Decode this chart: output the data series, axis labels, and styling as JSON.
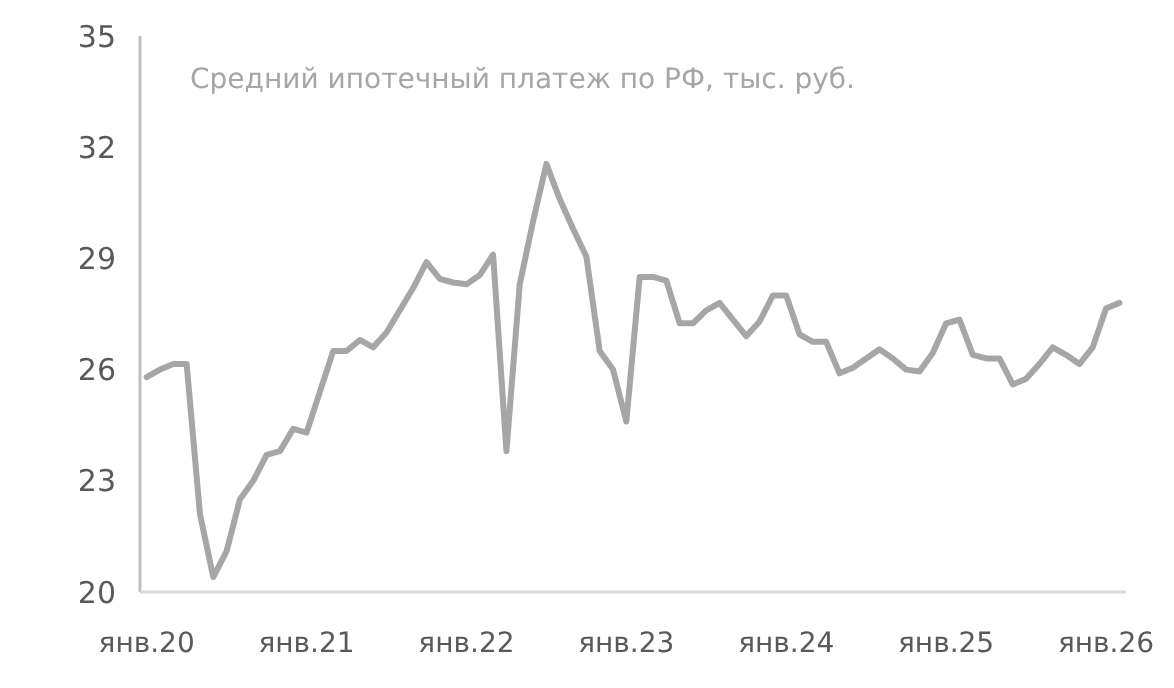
{
  "chart_data": {
    "type": "line",
    "title": "Средний ипотечный платеж по РФ, тыс. руб.",
    "categories": [
      "янв.20",
      null,
      null,
      null,
      null,
      null,
      null,
      null,
      null,
      null,
      null,
      null,
      "янв.21",
      null,
      null,
      null,
      null,
      null,
      null,
      null,
      null,
      null,
      null,
      null,
      "янв.22",
      null,
      null,
      null,
      null,
      null,
      null,
      null,
      null,
      null,
      null,
      null,
      "янв.23",
      null,
      null,
      null,
      null,
      null,
      null,
      null,
      null,
      null,
      null,
      null,
      "янв.24",
      null,
      null,
      null,
      null,
      null,
      null,
      null,
      null,
      null,
      null,
      null,
      "янв.25",
      null,
      null,
      null,
      null,
      null,
      null,
      null,
      null,
      null,
      null,
      null,
      "янв.26",
      null
    ],
    "series": [
      {
        "color": "#a6a6a6",
        "values": [
          25.8,
          26.0,
          26.15,
          26.15,
          22.1,
          20.4,
          21.1,
          22.5,
          23.0,
          23.7,
          23.8,
          24.4,
          24.3,
          25.4,
          26.5,
          26.5,
          26.8,
          26.6,
          27.0,
          27.6,
          28.2,
          28.9,
          28.45,
          28.35,
          28.3,
          28.55,
          29.1,
          23.8,
          28.3,
          30.0,
          31.55,
          30.6,
          29.8,
          29.05,
          26.5,
          26.0,
          24.6,
          28.5,
          28.5,
          28.4,
          27.25,
          27.25,
          27.6,
          27.8,
          27.35,
          26.9,
          27.3,
          28.0,
          28.0,
          26.95,
          26.75,
          26.75,
          25.9,
          26.05,
          26.3,
          26.55,
          26.3,
          26.0,
          25.95,
          26.45,
          27.25,
          27.35,
          26.4,
          26.3,
          26.3,
          25.6,
          25.75,
          26.15,
          26.6,
          26.4,
          26.15,
          26.6,
          27.65,
          27.8
        ]
      }
    ],
    "ylim": [
      20,
      35
    ],
    "yticks": [
      20,
      23,
      26,
      29,
      32,
      35
    ],
    "grid": false,
    "marker": "none",
    "line_style": "solid"
  }
}
